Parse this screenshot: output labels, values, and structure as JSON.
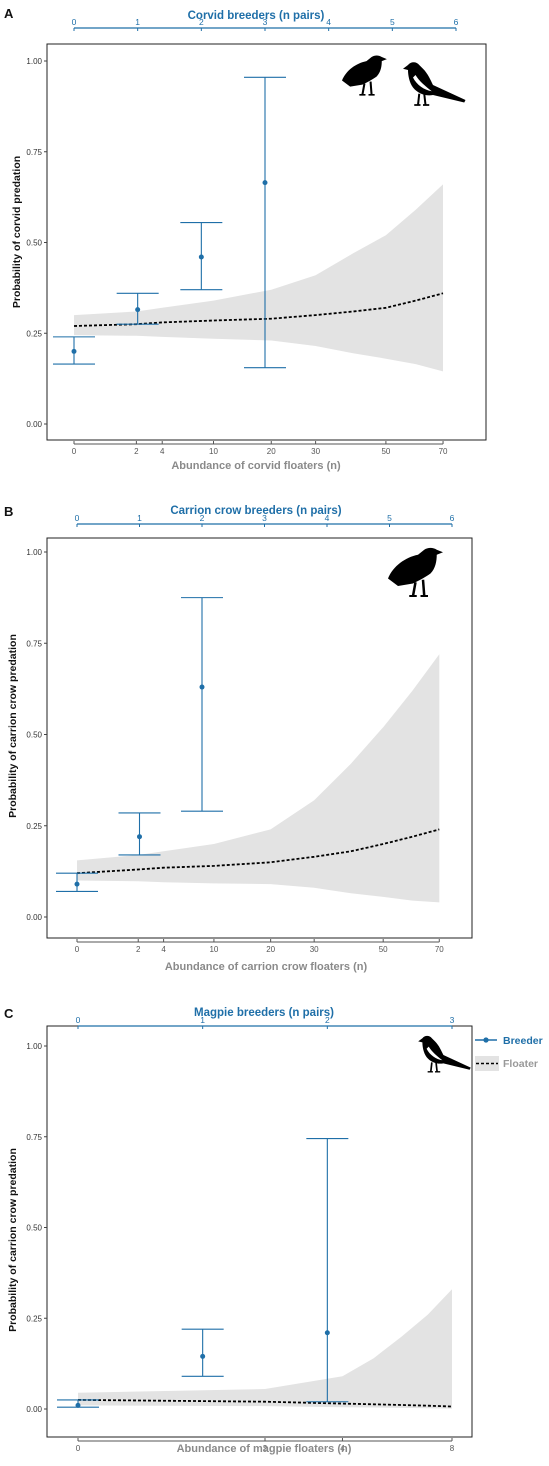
{
  "colors": {
    "breeder": "#1f6fa8",
    "floater": "#000000",
    "band": "#e3e3e3",
    "axis_gray": "#8a8a8a",
    "frame": "#222222"
  },
  "legend": {
    "breeder_label": "Breeder",
    "floater_label": "Floater"
  },
  "chart_data": [
    {
      "panel_label": "A",
      "type": "scatter",
      "top_title": "Corvid breeders (n pairs)",
      "top_ticks": [
        "0",
        "1",
        "2",
        "3",
        "4",
        "5",
        "6"
      ],
      "top_tick_values": [
        0,
        1,
        2,
        3,
        4,
        5,
        6
      ],
      "ylabel": "Probability of corvid predation",
      "xlabel": "Abundance of corvid floaters (n)",
      "ylim": [
        0,
        1
      ],
      "yticks": [
        "0.00",
        "0.25",
        "0.50",
        "0.75",
        "1.00"
      ],
      "ytick_values": [
        0,
        0.25,
        0.5,
        0.75,
        1
      ],
      "x_scale": "sqrt",
      "x_max": 75,
      "bottom_ticks": [
        "0",
        "2",
        "4",
        "10",
        "20",
        "30",
        "50",
        "70"
      ],
      "bottom_tick_values": [
        0,
        2,
        4,
        10,
        20,
        30,
        50,
        70
      ],
      "breeders": [
        {
          "n": 0,
          "p": 0.2,
          "lo": 0.165,
          "hi": 0.24
        },
        {
          "n": 1,
          "p": 0.315,
          "lo": 0.275,
          "hi": 0.36
        },
        {
          "n": 2,
          "p": 0.46,
          "lo": 0.37,
          "hi": 0.555
        },
        {
          "n": 3,
          "p": 0.665,
          "lo": 0.155,
          "hi": 0.955
        }
      ],
      "floaters": {
        "x": [
          0,
          2,
          4,
          10,
          20,
          30,
          40,
          50,
          60,
          70
        ],
        "mean": [
          0.27,
          0.275,
          0.28,
          0.285,
          0.29,
          0.3,
          0.31,
          0.32,
          0.34,
          0.36
        ],
        "lo": [
          0.245,
          0.243,
          0.24,
          0.235,
          0.23,
          0.215,
          0.195,
          0.18,
          0.165,
          0.145
        ],
        "hi": [
          0.3,
          0.31,
          0.32,
          0.34,
          0.37,
          0.41,
          0.47,
          0.52,
          0.59,
          0.66
        ]
      },
      "birds": [
        "crow",
        "magpie"
      ]
    },
    {
      "panel_label": "B",
      "type": "scatter",
      "top_title": "Carrion crow breeders (n pairs)",
      "top_ticks": [
        "0",
        "1",
        "2",
        "3",
        "4",
        "5",
        "6"
      ],
      "top_tick_values": [
        0,
        1,
        2,
        3,
        4,
        5,
        6
      ],
      "ylabel": "Probability of carrion crow predation",
      "xlabel": "Abundance of carrion crow floaters (n)",
      "ylim": [
        0,
        1
      ],
      "yticks": [
        "0.00",
        "0.25",
        "0.50",
        "0.75",
        "1.00"
      ],
      "ytick_values": [
        0,
        0.25,
        0.5,
        0.75,
        1
      ],
      "x_scale": "sqrt",
      "x_max": 75,
      "bottom_ticks": [
        "0",
        "2",
        "4",
        "10",
        "20",
        "30",
        "50",
        "70"
      ],
      "bottom_tick_values": [
        0,
        2,
        4,
        10,
        20,
        30,
        50,
        70
      ],
      "breeders": [
        {
          "n": 0,
          "p": 0.09,
          "lo": 0.07,
          "hi": 0.12
        },
        {
          "n": 1,
          "p": 0.22,
          "lo": 0.17,
          "hi": 0.285
        },
        {
          "n": 2,
          "p": 0.63,
          "lo": 0.29,
          "hi": 0.875
        }
      ],
      "floaters": {
        "x": [
          0,
          2,
          4,
          10,
          20,
          30,
          40,
          50,
          60,
          70
        ],
        "mean": [
          0.12,
          0.13,
          0.135,
          0.14,
          0.15,
          0.165,
          0.18,
          0.2,
          0.22,
          0.24
        ],
        "lo": [
          0.1,
          0.098,
          0.095,
          0.092,
          0.09,
          0.08,
          0.065,
          0.055,
          0.045,
          0.04
        ],
        "hi": [
          0.155,
          0.17,
          0.18,
          0.2,
          0.24,
          0.32,
          0.42,
          0.52,
          0.62,
          0.72
        ]
      },
      "birds": [
        "crow"
      ]
    },
    {
      "panel_label": "C",
      "type": "scatter",
      "top_title": "Magpie breeders (n pairs)",
      "top_ticks": [
        "0",
        "1",
        "2",
        "3"
      ],
      "top_tick_values": [
        0,
        1,
        2,
        3
      ],
      "ylabel": "Probability of carrion crow predation",
      "xlabel": "Abundance of magpie floaters (n)",
      "ylim": [
        0,
        1
      ],
      "yticks": [
        "0.00",
        "0.25",
        "0.50",
        "0.75",
        "1.00"
      ],
      "ytick_values": [
        0,
        0.25,
        0.5,
        0.75,
        1
      ],
      "x_scale": "sqrt",
      "x_max": 8,
      "bottom_ticks": [
        "0",
        "2",
        "4",
        "8"
      ],
      "bottom_tick_values": [
        0,
        2,
        4,
        8
      ],
      "breeders": [
        {
          "n": 0,
          "p": 0.01,
          "lo": 0.005,
          "hi": 0.025
        },
        {
          "n": 1,
          "p": 0.145,
          "lo": 0.09,
          "hi": 0.22
        },
        {
          "n": 2,
          "p": 0.21,
          "lo": 0.02,
          "hi": 0.745
        }
      ],
      "floaters": {
        "x": [
          0,
          2,
          4,
          5,
          6,
          7,
          8
        ],
        "mean": [
          0.025,
          0.02,
          0.015,
          0.013,
          0.011,
          0.009,
          0.007
        ],
        "lo": [
          0.01,
          0.008,
          0.005,
          0.004,
          0.003,
          0.002,
          0.001
        ],
        "hi": [
          0.045,
          0.055,
          0.09,
          0.14,
          0.2,
          0.26,
          0.33
        ]
      },
      "birds": [
        "magpie"
      ]
    }
  ]
}
